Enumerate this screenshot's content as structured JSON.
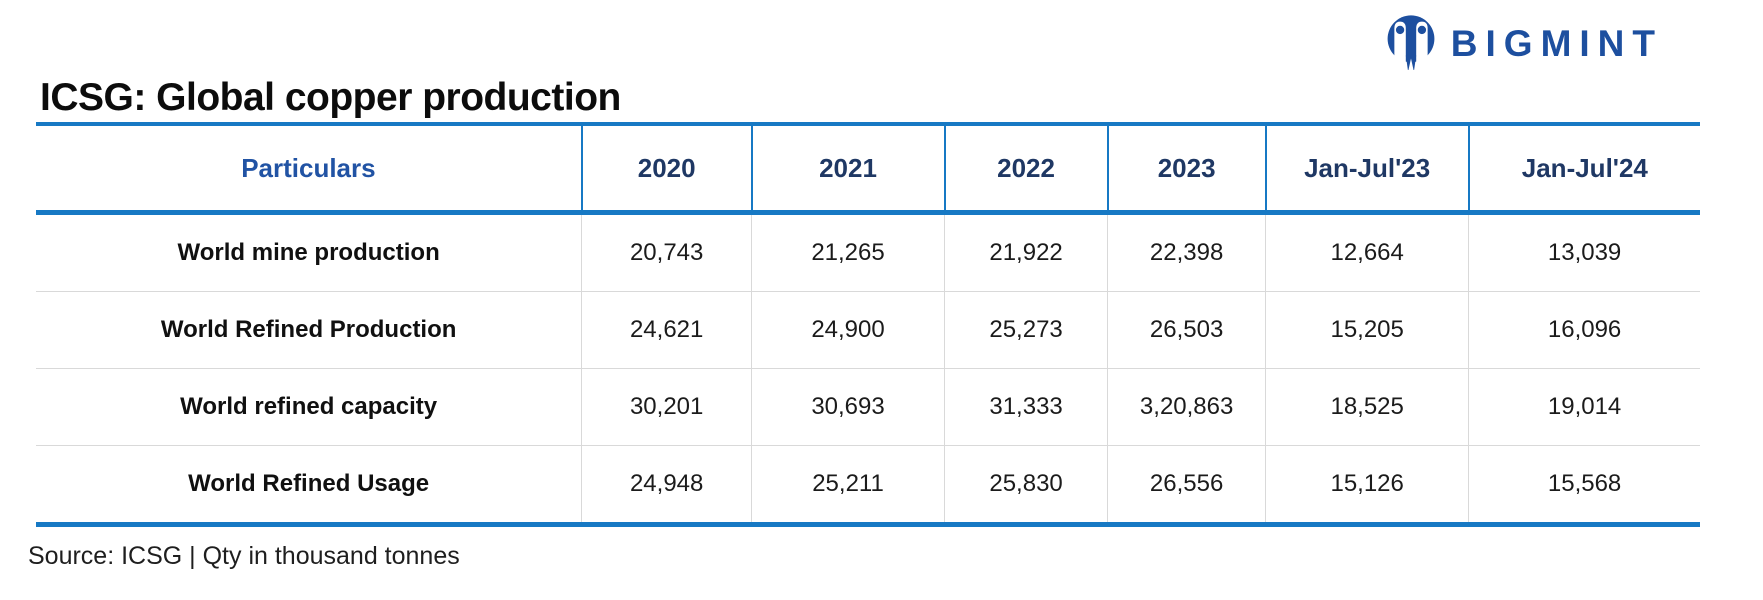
{
  "header": {
    "title": "ICSG: Global copper production",
    "logo": {
      "text": "BIGMINT",
      "color": "#1d4f9f"
    }
  },
  "colors": {
    "table_border_blue": "#1779c4",
    "header_year_text": "#1f3864",
    "particulars_text": "#2153a4",
    "row_divider_gray": "#d9d9d9",
    "title_black": "#0c0c0c"
  },
  "chart_data": {
    "type": "table",
    "title": "ICSG: Global copper production",
    "columns": [
      "Particulars",
      "2020",
      "2021",
      "2022",
      "2023",
      "Jan-Jul'23",
      "Jan-Jul'24"
    ],
    "rows": [
      {
        "label": "World mine production",
        "display": [
          "20,743",
          "21,265",
          "21,922",
          "22,398",
          "12,664",
          "13,039"
        ],
        "values": [
          20743,
          21265,
          21922,
          22398,
          12664,
          13039
        ]
      },
      {
        "label": "World Refined Production",
        "display": [
          "24,621",
          "24,900",
          "25,273",
          "26,503",
          "15,205",
          "16,096"
        ],
        "values": [
          24621,
          24900,
          25273,
          26503,
          15205,
          16096
        ]
      },
      {
        "label": "World refined capacity",
        "display": [
          "30,201",
          "30,693",
          "31,333",
          "3,20,863",
          "18,525",
          "19,014"
        ],
        "values": [
          30201,
          30693,
          31333,
          320863,
          18525,
          19014
        ]
      },
      {
        "label": "World Refined Usage",
        "display": [
          "24,948",
          "25,211",
          "25,830",
          "26,556",
          "15,126",
          "15,568"
        ],
        "values": [
          24948,
          25211,
          25830,
          26556,
          15126,
          15568
        ]
      }
    ],
    "units": "thousand tonnes"
  },
  "footer": {
    "source": "Source: ICSG | Qty in thousand tonnes"
  }
}
